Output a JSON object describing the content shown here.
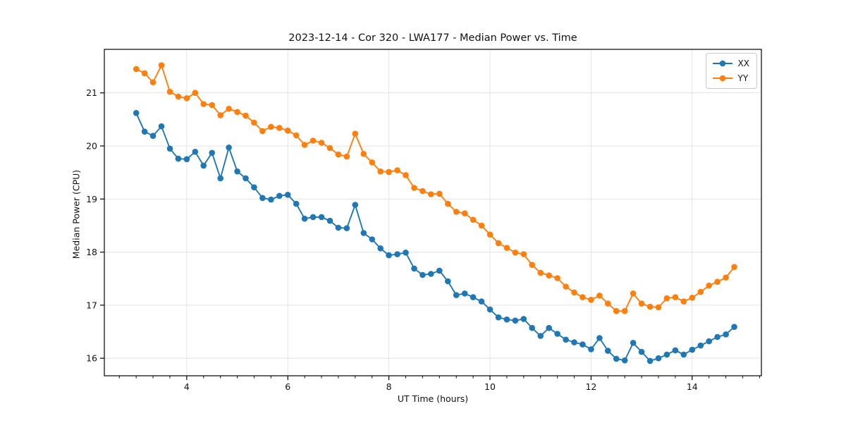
{
  "chart_data": {
    "type": "line",
    "title": "2023-12-14 - Cor 320 - LWA177 - Median Power vs. Time",
    "xlabel": "UT Time (hours)",
    "ylabel": "Median Power (CPU)",
    "xlim": [
      2.37,
      15.37
    ],
    "ylim": [
      15.67,
      21.82
    ],
    "xticks": [
      4,
      6,
      8,
      10,
      12,
      14
    ],
    "yticks": [
      16,
      17,
      18,
      19,
      20,
      21
    ],
    "minor_xtick_step": 0.3333,
    "grid": true,
    "legend_position": "upper right",
    "marker": "o",
    "x": [
      3.0,
      3.167,
      3.333,
      3.5,
      3.667,
      3.833,
      4.0,
      4.167,
      4.333,
      4.5,
      4.667,
      4.833,
      5.0,
      5.167,
      5.333,
      5.5,
      5.667,
      5.833,
      6.0,
      6.167,
      6.333,
      6.5,
      6.667,
      6.833,
      7.0,
      7.167,
      7.333,
      7.5,
      7.667,
      7.833,
      8.0,
      8.167,
      8.333,
      8.5,
      8.667,
      8.833,
      9.0,
      9.167,
      9.333,
      9.5,
      9.667,
      9.833,
      10.0,
      10.167,
      10.333,
      10.5,
      10.667,
      10.833,
      11.0,
      11.167,
      11.333,
      11.5,
      11.667,
      11.833,
      12.0,
      12.167,
      12.333,
      12.5,
      12.667,
      12.833,
      13.0,
      13.167,
      13.333,
      13.5,
      13.667,
      13.833,
      14.0,
      14.167,
      14.333,
      14.5,
      14.667,
      14.833
    ],
    "series": [
      {
        "name": "XX",
        "color": "#1f77b4",
        "values": [
          20.62,
          20.27,
          20.19,
          20.37,
          19.95,
          19.76,
          19.75,
          19.89,
          19.63,
          19.87,
          19.39,
          19.97,
          19.52,
          19.39,
          19.22,
          19.02,
          18.99,
          19.06,
          19.08,
          18.91,
          18.63,
          18.66,
          18.66,
          18.59,
          18.46,
          18.45,
          18.89,
          18.36,
          18.24,
          18.07,
          17.94,
          17.96,
          17.99,
          17.69,
          17.57,
          17.59,
          17.65,
          17.45,
          17.19,
          17.22,
          17.15,
          17.07,
          16.92,
          16.77,
          16.73,
          16.71,
          16.74,
          16.57,
          16.42,
          16.57,
          16.46,
          16.35,
          16.3,
          16.26,
          16.17,
          16.38,
          16.14,
          15.99,
          15.96,
          16.29,
          16.12,
          15.95,
          16.0,
          16.07,
          16.15,
          16.07,
          16.16,
          16.24,
          16.32,
          16.4,
          16.45,
          16.59
        ]
      },
      {
        "name": "YY",
        "color": "#ff7f0e",
        "values": [
          21.45,
          21.37,
          21.2,
          21.52,
          21.02,
          20.93,
          20.9,
          21.0,
          20.79,
          20.77,
          20.58,
          20.7,
          20.64,
          20.57,
          20.44,
          20.28,
          20.36,
          20.34,
          20.29,
          20.2,
          20.02,
          20.1,
          20.06,
          19.96,
          19.84,
          19.8,
          20.23,
          19.85,
          19.69,
          19.52,
          19.51,
          19.54,
          19.45,
          19.21,
          19.15,
          19.09,
          19.1,
          18.91,
          18.76,
          18.73,
          18.61,
          18.5,
          18.33,
          18.17,
          18.08,
          17.99,
          17.96,
          17.76,
          17.61,
          17.56,
          17.51,
          17.35,
          17.24,
          17.15,
          17.1,
          17.18,
          17.03,
          16.89,
          16.89,
          17.22,
          17.03,
          16.97,
          16.96,
          17.13,
          17.15,
          17.07,
          17.14,
          17.25,
          17.37,
          17.44,
          17.52,
          17.72
        ]
      }
    ]
  }
}
